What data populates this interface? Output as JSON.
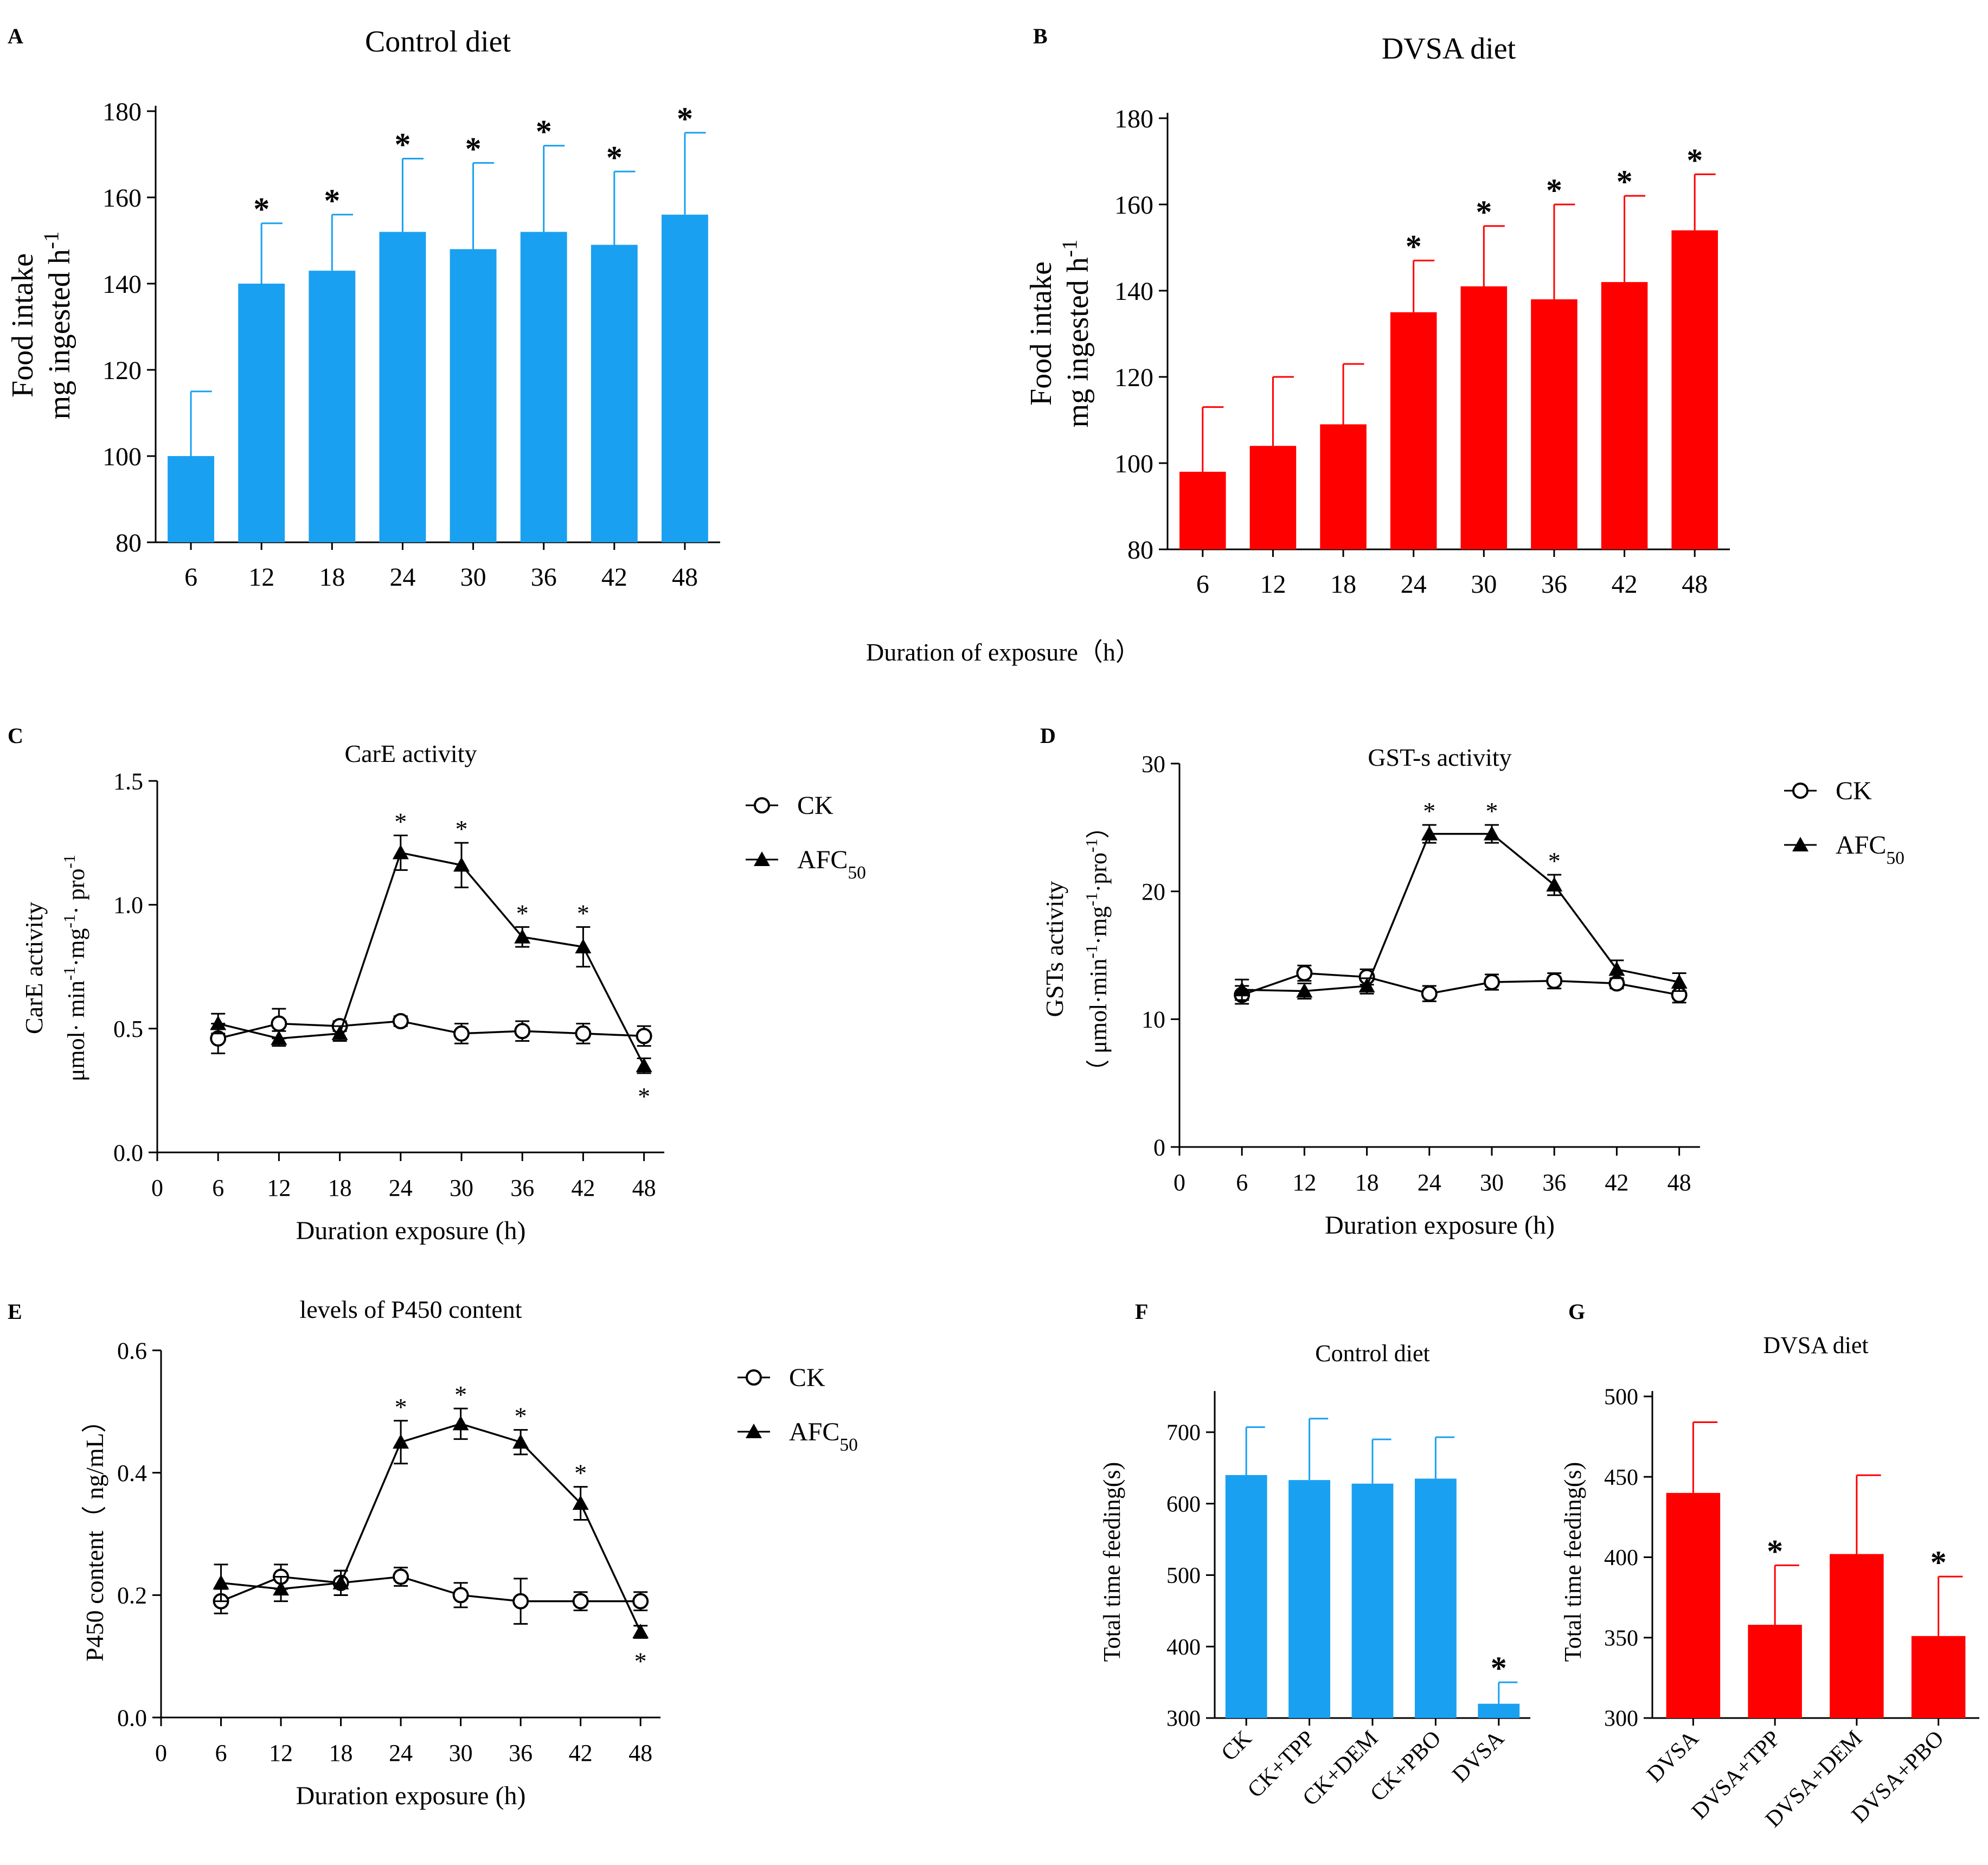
{
  "figure": {
    "shared_xlabel": "Duration of exposure（h）"
  },
  "chart_data": [
    {
      "id": "A",
      "panel_label": "A",
      "type": "bar",
      "title": "Control diet",
      "ylabel": [
        "Food intake",
        "mg ingested h",
        "-1"
      ],
      "categories": [
        "6",
        "12",
        "18",
        "24",
        "30",
        "36",
        "42",
        "48"
      ],
      "values": [
        100,
        140,
        143,
        152,
        148,
        152,
        149,
        156
      ],
      "errors": [
        15,
        14,
        13,
        17,
        20,
        20,
        17,
        19
      ],
      "significant": [
        false,
        true,
        true,
        true,
        true,
        true,
        true,
        true
      ],
      "ylim": [
        80,
        180
      ],
      "yticks": [
        80,
        100,
        120,
        140,
        160,
        180
      ],
      "color": "#1aa0f0"
    },
    {
      "id": "B",
      "panel_label": "B",
      "type": "bar",
      "title": "DVSA diet",
      "ylabel": [
        "Food intake",
        "mg ingested h",
        "-1"
      ],
      "categories": [
        "6",
        "12",
        "18",
        "24",
        "30",
        "36",
        "42",
        "48"
      ],
      "values": [
        98,
        104,
        109,
        135,
        141,
        138,
        142,
        154
      ],
      "errors": [
        15,
        16,
        14,
        12,
        14,
        22,
        20,
        13
      ],
      "significant": [
        false,
        false,
        false,
        true,
        true,
        true,
        true,
        true
      ],
      "ylim": [
        80,
        180
      ],
      "yticks": [
        80,
        100,
        120,
        140,
        160,
        180
      ],
      "color": "#ff0000"
    },
    {
      "id": "C",
      "panel_label": "C",
      "type": "line",
      "title": "CarE activity",
      "ylabel": [
        "CarE activity",
        "μmol· min",
        "-1",
        "·mg",
        "-1",
        "· pro",
        "-1"
      ],
      "xlabel": "Duration exposure (h)",
      "x": [
        6,
        12,
        18,
        24,
        30,
        36,
        42,
        48
      ],
      "xticks": [
        0,
        6,
        12,
        18,
        24,
        30,
        36,
        42,
        48
      ],
      "xlim": [
        0,
        50
      ],
      "ylim": [
        0,
        1.5
      ],
      "yticks": [
        "0.0",
        "0.5",
        "1.0",
        "1.5"
      ],
      "series": [
        {
          "name": "CK",
          "marker": "circle",
          "values": [
            0.46,
            0.52,
            0.51,
            0.53,
            0.48,
            0.49,
            0.48,
            0.47
          ],
          "errors": [
            0.06,
            0.06,
            0.02,
            0.02,
            0.04,
            0.04,
            0.04,
            0.04
          ]
        },
        {
          "name": "AFC",
          "name_sub": "50",
          "marker": "triangle",
          "values": [
            0.52,
            0.46,
            0.48,
            1.21,
            1.16,
            0.87,
            0.83,
            0.35
          ],
          "errors": [
            0.04,
            0.03,
            0.03,
            0.07,
            0.09,
            0.04,
            0.08,
            0.03
          ],
          "significant": [
            false,
            false,
            false,
            true,
            true,
            true,
            true,
            true
          ],
          "sig_below": [
            false,
            false,
            false,
            false,
            false,
            false,
            false,
            true
          ]
        }
      ],
      "legend": "right"
    },
    {
      "id": "D",
      "panel_label": "D",
      "type": "line",
      "title": "GST-s activity",
      "ylabel": [
        "GSTs activity",
        "（ μmol·min",
        "-1",
        "·mg",
        "-1",
        "·pro",
        "-1",
        "）"
      ],
      "xlabel": "Duration exposure (h)",
      "x": [
        6,
        12,
        18,
        24,
        30,
        36,
        42,
        48
      ],
      "xticks": [
        0,
        6,
        12,
        18,
        24,
        30,
        36,
        42,
        48
      ],
      "xlim": [
        0,
        50
      ],
      "ylim": [
        0,
        30
      ],
      "yticks": [
        "0",
        "10",
        "20",
        "30"
      ],
      "series": [
        {
          "name": "CK",
          "marker": "circle",
          "values": [
            11.9,
            13.6,
            13.3,
            12.0,
            12.9,
            13.0,
            12.8,
            11.9
          ],
          "errors": [
            0.7,
            0.6,
            0.6,
            0.6,
            0.6,
            0.6,
            0.4,
            0.6
          ]
        },
        {
          "name": "AFC",
          "name_sub": "50",
          "marker": "triangle",
          "values": [
            12.3,
            12.2,
            12.6,
            24.5,
            24.5,
            20.5,
            13.9,
            12.9
          ],
          "errors": [
            0.8,
            0.6,
            0.6,
            0.7,
            0.7,
            0.8,
            0.7,
            0.7
          ],
          "significant": [
            false,
            false,
            false,
            true,
            true,
            true,
            false,
            false
          ],
          "sig_below": [
            false,
            false,
            false,
            false,
            false,
            false,
            false,
            false
          ]
        }
      ],
      "legend": "right"
    },
    {
      "id": "E",
      "panel_label": "E",
      "type": "line",
      "title": "levels of P450 content",
      "ylabel": [
        "P450 content（ ng/mL）"
      ],
      "xlabel": "Duration exposure (h)",
      "x": [
        6,
        12,
        18,
        24,
        30,
        36,
        42,
        48
      ],
      "xticks": [
        0,
        6,
        12,
        18,
        24,
        30,
        36,
        42,
        48
      ],
      "xlim": [
        0,
        50
      ],
      "ylim": [
        0,
        0.6
      ],
      "yticks": [
        "0.0",
        "0.2",
        "0.4",
        "0.6"
      ],
      "series": [
        {
          "name": "CK",
          "marker": "circle",
          "values": [
            0.19,
            0.23,
            0.22,
            0.23,
            0.2,
            0.19,
            0.19,
            0.19
          ],
          "errors": [
            0.02,
            0.02,
            0.02,
            0.015,
            0.02,
            0.037,
            0.015,
            0.015
          ]
        },
        {
          "name": "AFC",
          "name_sub": "50",
          "marker": "triangle",
          "values": [
            0.22,
            0.21,
            0.22,
            0.45,
            0.48,
            0.45,
            0.35,
            0.14
          ],
          "errors": [
            0.03,
            0.02,
            0.02,
            0.035,
            0.025,
            0.02,
            0.027,
            0.01
          ],
          "significant": [
            false,
            false,
            false,
            true,
            true,
            true,
            true,
            true
          ],
          "sig_below": [
            false,
            false,
            false,
            false,
            false,
            false,
            false,
            true
          ]
        }
      ],
      "legend": "right"
    },
    {
      "id": "F",
      "panel_label": "F",
      "type": "bar",
      "title": "Control diet",
      "ylabel": [
        "Total time feeding(s)"
      ],
      "categories": [
        "CK",
        "CK+TPP",
        "CK+DEM",
        "CK+PBO",
        "DVSA"
      ],
      "values": [
        640,
        633,
        628,
        635,
        320
      ],
      "errors": [
        67,
        86,
        62,
        58,
        30
      ],
      "significant": [
        false,
        false,
        false,
        false,
        true
      ],
      "ylim": [
        300,
        750
      ],
      "yticks": [
        300,
        400,
        500,
        600,
        700
      ],
      "color": "#1aa0f0"
    },
    {
      "id": "G",
      "panel_label": "G",
      "type": "bar",
      "title": "DVSA diet",
      "ylabel": [
        "Total time feeding(s)"
      ],
      "categories": [
        "DVSA",
        "DVSA+TPP",
        "DVSA+DEM",
        "DVSA+PBO"
      ],
      "values": [
        440,
        358,
        402,
        351
      ],
      "errors": [
        44,
        37,
        49,
        37
      ],
      "significant": [
        false,
        true,
        false,
        true
      ],
      "ylim": [
        300,
        500
      ],
      "yticks": [
        300,
        350,
        400,
        450,
        500
      ],
      "color": "#ff0000"
    }
  ]
}
